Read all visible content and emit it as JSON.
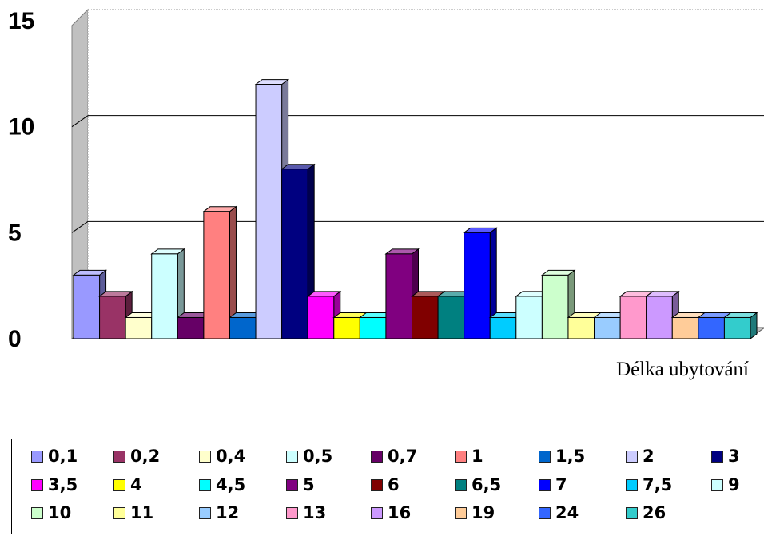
{
  "chart_data": {
    "type": "bar",
    "title": "",
    "xlabel": "Délka ubytování",
    "ylabel": "",
    "ylim": [
      0,
      15
    ],
    "yticks": [
      "0",
      "5",
      "10",
      "15"
    ],
    "grid": true,
    "legend_position": "bottom",
    "series": [
      {
        "name": "0,1",
        "value": 3,
        "color": "#9999ff"
      },
      {
        "name": "0,2",
        "value": 2,
        "color": "#993366"
      },
      {
        "name": "0,4",
        "value": 1,
        "color": "#ffffcc"
      },
      {
        "name": "0,5",
        "value": 4,
        "color": "#ccffff"
      },
      {
        "name": "0,7",
        "value": 1,
        "color": "#660066"
      },
      {
        "name": "1",
        "value": 6,
        "color": "#ff8080"
      },
      {
        "name": "1,5",
        "value": 1,
        "color": "#0066cc"
      },
      {
        "name": "2",
        "value": 12,
        "color": "#ccccff"
      },
      {
        "name": "3",
        "value": 8,
        "color": "#000080"
      },
      {
        "name": "3,5",
        "value": 2,
        "color": "#ff00ff"
      },
      {
        "name": "4",
        "value": 1,
        "color": "#ffff00"
      },
      {
        "name": "4,5",
        "value": 1,
        "color": "#00ffff"
      },
      {
        "name": "5",
        "value": 4,
        "color": "#800080"
      },
      {
        "name": "6",
        "value": 2,
        "color": "#800000"
      },
      {
        "name": "6,5",
        "value": 2,
        "color": "#008080"
      },
      {
        "name": "7",
        "value": 5,
        "color": "#0000ff"
      },
      {
        "name": "7,5",
        "value": 1,
        "color": "#00ccff"
      },
      {
        "name": "9",
        "value": 2,
        "color": "#ccffff"
      },
      {
        "name": "10",
        "value": 3,
        "color": "#ccffcc"
      },
      {
        "name": "11",
        "value": 1,
        "color": "#ffff99"
      },
      {
        "name": "12",
        "value": 1,
        "color": "#99ccff"
      },
      {
        "name": "13",
        "value": 2,
        "color": "#ff99cc"
      },
      {
        "name": "16",
        "value": 2,
        "color": "#cc99ff"
      },
      {
        "name": "19",
        "value": 1,
        "color": "#ffcc99"
      },
      {
        "name": "24",
        "value": 1,
        "color": "#3366ff"
      },
      {
        "name": "26",
        "value": 1,
        "color": "#33cccc"
      }
    ]
  }
}
